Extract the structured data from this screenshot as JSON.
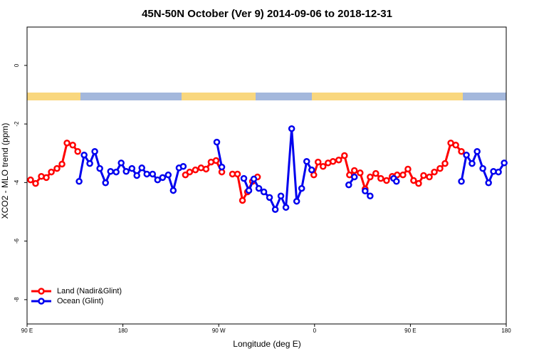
{
  "chart_data": {
    "type": "line",
    "title": "45N-50N October (Ver 9)   2014-09-06 to 2018-12-31",
    "x_label": "Longitude (deg E)",
    "y_label": "XCO2 - MLO trend (ppm)",
    "xlim": [
      90,
      540
    ],
    "ylim": [
      -8.83,
      1.31
    ],
    "xticks": [
      {
        "value": 90,
        "label": "90 E"
      },
      {
        "value": 180,
        "label": "180"
      },
      {
        "value": 270,
        "label": "90 W"
      },
      {
        "value": 360,
        "label": "0"
      },
      {
        "value": 450,
        "label": "90 E"
      },
      {
        "value": 540,
        "label": "180"
      }
    ],
    "yticks": [
      0,
      -2,
      -4,
      -6,
      -8
    ],
    "legend": "bottom-left",
    "series": [
      {
        "name": "Land (Nadir&Glint)",
        "color": "#ff0000",
        "x": [
          93.3,
          98.0,
          103.4,
          108.1,
          112.8,
          118.1,
          122.8,
          127.5,
          132.9,
          137.6,
          null,
          238.7,
          242.7,
          248.1,
          253.4,
          258.1,
          262.8,
          267.5,
          272.9,
          null,
          282.9,
          287.6,
          292.3,
          297.0,
          301.7,
          306.4,
          null,
          359.3,
          363.3,
          368.0,
          372.7,
          377.3,
          382.7,
          388.1,
          392.8,
          397.4,
          402.8,
          407.5,
          412.2,
          417.5,
          422.2,
          427.6,
          432.9,
          437.6,
          443.0,
          447.7,
          453.0,
          457.7,
          462.4,
          467.8,
          472.5,
          477.8,
          482.5,
          487.9,
          492.6,
          497.9
        ],
        "values": [
          -3.91,
          -4.03,
          -3.79,
          -3.83,
          -3.64,
          -3.52,
          -3.37,
          -2.65,
          -2.72,
          -2.94,
          null,
          -3.74,
          -3.64,
          -3.57,
          -3.5,
          -3.54,
          -3.3,
          -3.25,
          -3.64,
          null,
          -3.71,
          -3.71,
          -4.61,
          -4.32,
          -3.96,
          -3.81,
          null,
          -3.74,
          -3.3,
          -3.45,
          -3.33,
          -3.28,
          -3.23,
          -3.08,
          -3.74,
          -3.59,
          -3.67,
          -4.22,
          -3.81,
          -3.69,
          -3.86,
          -3.93,
          -3.79,
          -3.74,
          -3.74,
          -3.54,
          -3.93,
          -4.03,
          -3.76,
          -3.81,
          -3.64,
          -3.52,
          -3.35,
          -2.65,
          -2.72,
          -2.94
        ]
      },
      {
        "name": "Ocean (Glint)",
        "color": "#0000ee",
        "x": [
          138.9,
          143.6,
          148.9,
          153.6,
          158.3,
          163.7,
          168.4,
          173.7,
          178.4,
          183.1,
          188.5,
          193.1,
          197.8,
          202.5,
          207.9,
          212.6,
          217.3,
          222.6,
          227.3,
          232.7,
          236.7,
          null,
          268.2,
          272.9,
          null,
          293.6,
          298.3,
          303.0,
          307.7,
          312.4,
          317.7,
          323.1,
          328.4,
          333.1,
          338.5,
          343.2,
          347.9,
          352.6,
          357.3,
          null,
          392.1,
          397.4,
          null,
          407.5,
          412.2,
          null,
          434.3,
          436.9,
          null,
          497.9,
          502.6,
          507.9,
          512.7,
          518.0,
          523.4,
          528.0,
          532.7,
          538.1
        ],
        "values": [
          -3.96,
          -3.06,
          -3.35,
          -2.94,
          -3.52,
          -4.01,
          -3.62,
          -3.64,
          -3.33,
          -3.62,
          -3.52,
          -3.76,
          -3.5,
          -3.71,
          -3.71,
          -3.91,
          -3.83,
          -3.74,
          -4.27,
          -3.5,
          -3.45,
          null,
          -2.62,
          -3.47,
          null,
          -3.86,
          -4.27,
          -3.88,
          -4.2,
          -4.32,
          -4.51,
          -4.92,
          -4.46,
          -4.85,
          -2.16,
          -4.64,
          -4.2,
          -3.28,
          -3.57,
          null,
          -4.08,
          -3.81,
          null,
          -4.29,
          -4.46,
          null,
          -3.86,
          -3.96,
          null,
          -3.96,
          -3.06,
          -3.35,
          -2.94,
          -3.52,
          -4.01,
          -3.62,
          -3.64,
          -3.33
        ]
      }
    ]
  }
}
